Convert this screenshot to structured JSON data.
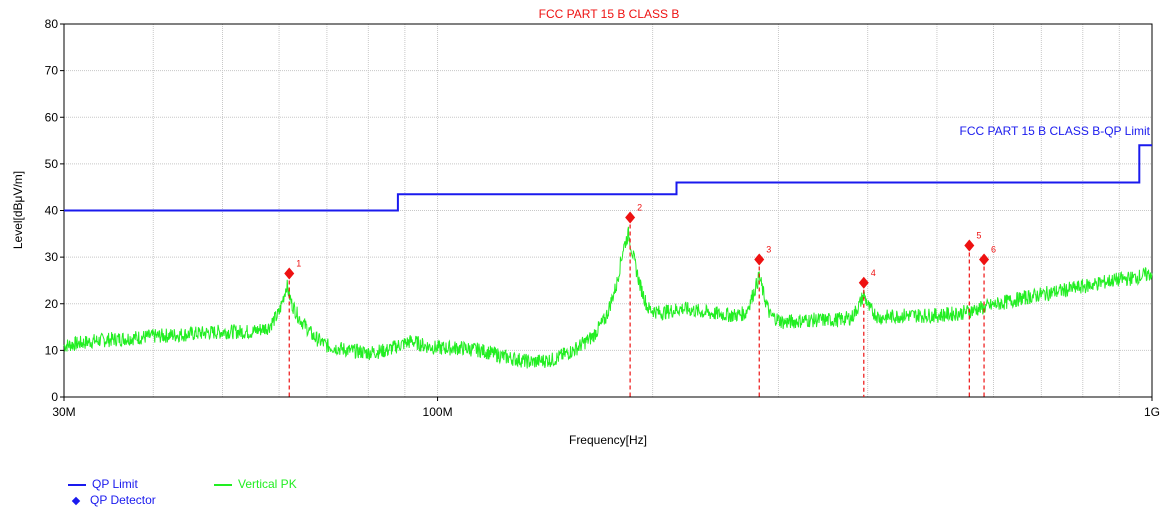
{
  "chart_data": {
    "type": "line",
    "title": "FCC PART 15 B CLASS B",
    "xlabel": "Frequency[Hz]",
    "ylabel": "Level[dBμV/m]",
    "x_scale": "log",
    "xlim": [
      30000000,
      1000000000
    ],
    "ylim": [
      0,
      80
    ],
    "x_ticks": [
      {
        "value": 30000000,
        "label": "30M"
      },
      {
        "value": 100000000,
        "label": "100M"
      },
      {
        "value": 1000000000,
        "label": "1G"
      }
    ],
    "y_ticks": [
      0,
      10,
      20,
      30,
      40,
      50,
      60,
      70,
      80
    ],
    "grid": true,
    "limit_label": "FCC PART 15 B CLASS B-QP Limit",
    "series": [
      {
        "name": "QP Limit",
        "color": "#1a1aee",
        "kind": "step",
        "points": [
          [
            30000000,
            40
          ],
          [
            88000000,
            40
          ],
          [
            88000000,
            43.5
          ],
          [
            216000000,
            43.5
          ],
          [
            216000000,
            46
          ],
          [
            960000000,
            46
          ],
          [
            960000000,
            54
          ],
          [
            1000000000,
            54
          ]
        ]
      },
      {
        "name": "Vertical PK",
        "color": "#22ee22",
        "kind": "trace",
        "points": [
          [
            30000000,
            11
          ],
          [
            33000000,
            12
          ],
          [
            36000000,
            12.5
          ],
          [
            40000000,
            13
          ],
          [
            45000000,
            13.5
          ],
          [
            50000000,
            14
          ],
          [
            55000000,
            14
          ],
          [
            58000000,
            15
          ],
          [
            60000000,
            18
          ],
          [
            61500000,
            24
          ],
          [
            62500000,
            20
          ],
          [
            64000000,
            17
          ],
          [
            67000000,
            13
          ],
          [
            70000000,
            11
          ],
          [
            75000000,
            10
          ],
          [
            80000000,
            9.5
          ],
          [
            85000000,
            10
          ],
          [
            88000000,
            11
          ],
          [
            92000000,
            12
          ],
          [
            96000000,
            11
          ],
          [
            100000000,
            10.5
          ],
          [
            108000000,
            10.5
          ],
          [
            115000000,
            10
          ],
          [
            125000000,
            8.5
          ],
          [
            135000000,
            7.5
          ],
          [
            145000000,
            8
          ],
          [
            155000000,
            10
          ],
          [
            165000000,
            13
          ],
          [
            172000000,
            17
          ],
          [
            178000000,
            24
          ],
          [
            182000000,
            32
          ],
          [
            185000000,
            35
          ],
          [
            188000000,
            30
          ],
          [
            192000000,
            24
          ],
          [
            197000000,
            19
          ],
          [
            205000000,
            18
          ],
          [
            220000000,
            19
          ],
          [
            240000000,
            18
          ],
          [
            260000000,
            17.5
          ],
          [
            270000000,
            18
          ],
          [
            278000000,
            23
          ],
          [
            282000000,
            26
          ],
          [
            286000000,
            22
          ],
          [
            292000000,
            17.5
          ],
          [
            305000000,
            16
          ],
          [
            330000000,
            16.5
          ],
          [
            360000000,
            16.5
          ],
          [
            380000000,
            17
          ],
          [
            390000000,
            20
          ],
          [
            395000000,
            22
          ],
          [
            402000000,
            19
          ],
          [
            415000000,
            17
          ],
          [
            450000000,
            17.5
          ],
          [
            500000000,
            17.5
          ],
          [
            540000000,
            18
          ],
          [
            575000000,
            19
          ],
          [
            610000000,
            20
          ],
          [
            650000000,
            21
          ],
          [
            700000000,
            22
          ],
          [
            760000000,
            23
          ],
          [
            820000000,
            24
          ],
          [
            880000000,
            25
          ],
          [
            940000000,
            25.5
          ],
          [
            1000000000,
            26.5
          ]
        ]
      }
    ],
    "markers": {
      "name": "QP Detector",
      "color": "#ee1111",
      "points": [
        {
          "label": "1",
          "freq": 62000000,
          "level": 26.5
        },
        {
          "label": "2",
          "freq": 186000000,
          "level": 38.5
        },
        {
          "label": "3",
          "freq": 282000000,
          "level": 29.5
        },
        {
          "label": "4",
          "freq": 395000000,
          "level": 24.5
        },
        {
          "label": "5",
          "freq": 555000000,
          "level": 32.5
        },
        {
          "label": "6",
          "freq": 582000000,
          "level": 29.5
        }
      ]
    },
    "legend": [
      {
        "label": "QP Limit",
        "symbol": "line",
        "color": "#1a1aee"
      },
      {
        "label": "Vertical PK",
        "symbol": "line",
        "color": "#22ee22"
      },
      {
        "label": "QP Detector",
        "symbol": "diamond",
        "color": "#1a1aee"
      }
    ],
    "legend_position": "bottom-left"
  }
}
